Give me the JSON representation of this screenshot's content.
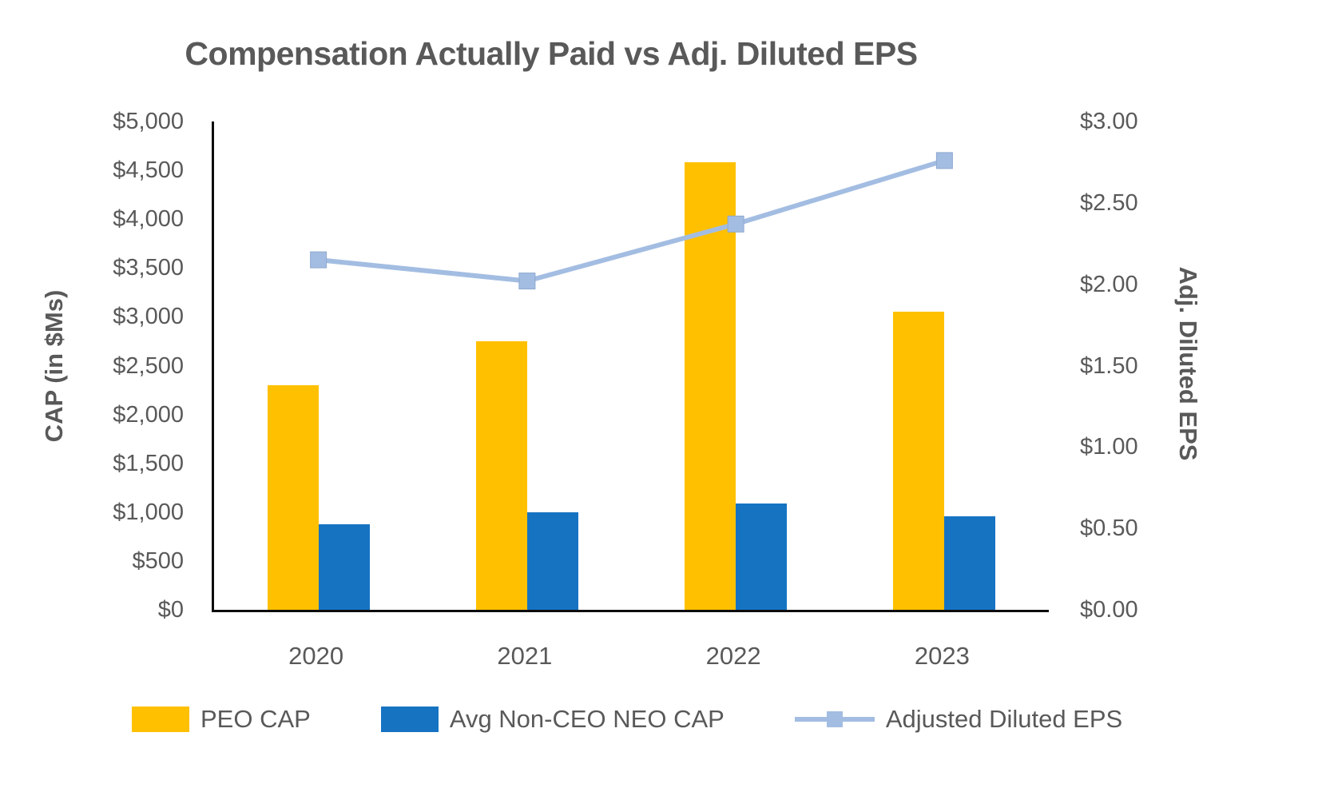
{
  "title": "Compensation Actually Paid vs Adj. Diluted EPS",
  "colors": {
    "text": "#595959",
    "axis_line": "#0d0d0d",
    "peo_cap": "#FFC000",
    "neo_cap": "#1673C2",
    "eps_line": "#A3BDE2"
  },
  "chart_data": {
    "type": "bar",
    "title": "Compensation Actually Paid vs Adj. Diluted EPS",
    "categories": [
      "2020",
      "2021",
      "2022",
      "2023"
    ],
    "series": [
      {
        "name": "PEO CAP",
        "type": "bar",
        "axis": "left",
        "color": "#FFC000",
        "values": [
          2300,
          2750,
          4580,
          3050
        ]
      },
      {
        "name": "Avg Non-CEO NEO CAP",
        "type": "bar",
        "axis": "left",
        "color": "#1673C2",
        "values": [
          875,
          1000,
          1090,
          960
        ]
      },
      {
        "name": "Adjusted Diluted EPS",
        "type": "line",
        "axis": "right",
        "color": "#A3BDE2",
        "values": [
          2.15,
          2.02,
          2.37,
          2.76
        ]
      }
    ],
    "left_axis": {
      "label": "CAP (in $Ms)",
      "min": 0,
      "max": 5000,
      "step": 500,
      "ticks": [
        "$0",
        "$500",
        "$1,000",
        "$1,500",
        "$2,000",
        "$2,500",
        "$3,000",
        "$3,500",
        "$4,000",
        "$4,500",
        "$5,000"
      ]
    },
    "right_axis": {
      "label": "Adj. Diluted EPS",
      "min": 0,
      "max": 3,
      "step": 0.5,
      "ticks": [
        "$0.00",
        "$0.50",
        "$1.00",
        "$1.50",
        "$2.00",
        "$2.50",
        "$3.00"
      ]
    },
    "legend": [
      "PEO CAP",
      "Avg Non-CEO NEO CAP",
      "Adjusted Diluted EPS"
    ],
    "legend_position": "bottom",
    "grid": false
  }
}
